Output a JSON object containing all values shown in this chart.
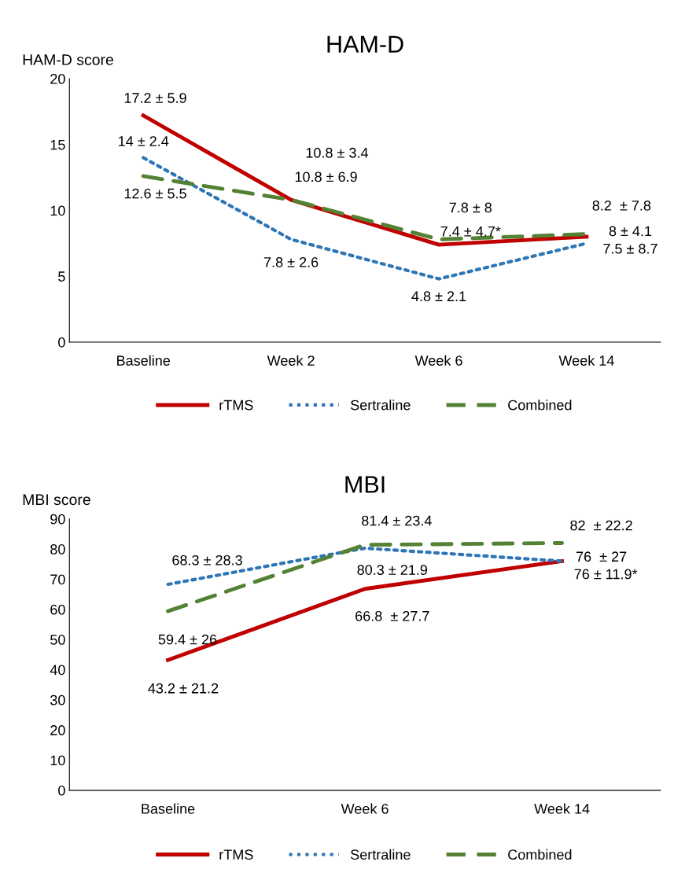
{
  "chart_data": [
    {
      "type": "line",
      "title": "HAM-D",
      "ylabel": "HAM-D score",
      "categories": [
        "Baseline",
        "Week 2",
        "Week 6",
        "Week 14"
      ],
      "ylim": [
        0,
        20
      ],
      "yticks": [
        0,
        5,
        10,
        15,
        20
      ],
      "legend": "bottom",
      "grid": false,
      "series": [
        {
          "name": "rTMS",
          "color": "#c00000",
          "line_style": "solid",
          "values": [
            17.2,
            10.8,
            7.4,
            8
          ],
          "value_labels": [
            "17.2 ± 5.9",
            "10.8 ± 3.4",
            "7.4 ± 4.7*",
            "8 ± 4.1"
          ]
        },
        {
          "name": "Sertraline",
          "color": "#2e75b6",
          "line_style": "dotted",
          "values": [
            14,
            7.8,
            4.8,
            7.5
          ],
          "value_labels": [
            "14 ± 2.4",
            "7.8 ± 2.6",
            "4.8 ± 2.1",
            "7.5 ± 8.7"
          ]
        },
        {
          "name": "Combined",
          "color": "#548235",
          "line_style": "dashed",
          "values": [
            12.6,
            10.8,
            7.8,
            8.2
          ],
          "value_labels": [
            "12.6 ± 5.5",
            "10.8 ± 6.9",
            "7.8 ± 8",
            "8.2  ± 7.8"
          ]
        }
      ]
    },
    {
      "type": "line",
      "title": "MBI",
      "ylabel": "MBI score",
      "categories": [
        "Baseline",
        "Week 6",
        "Week 14"
      ],
      "ylim": [
        0,
        90
      ],
      "yticks": [
        0,
        10,
        20,
        30,
        40,
        50,
        60,
        70,
        80,
        90
      ],
      "legend": "bottom",
      "grid": false,
      "series": [
        {
          "name": "rTMS",
          "color": "#c00000",
          "line_style": "solid",
          "values": [
            43.2,
            66.8,
            76
          ],
          "value_labels": [
            "43.2 ± 21.2",
            "66.8  ± 27.7",
            "76 ± 11.9*"
          ]
        },
        {
          "name": "Sertraline",
          "color": "#2e75b6",
          "line_style": "dotted",
          "values": [
            68.3,
            80.3,
            76
          ],
          "value_labels": [
            "68.3 ± 28.3",
            "80.3 ± 21.9",
            "76  ± 27"
          ]
        },
        {
          "name": "Combined",
          "color": "#548235",
          "line_style": "dashed",
          "values": [
            59.4,
            81.4,
            82
          ],
          "value_labels": [
            "59.4 ± 26",
            "81.4 ± 23.4",
            "82  ± 22.2"
          ]
        }
      ]
    }
  ]
}
